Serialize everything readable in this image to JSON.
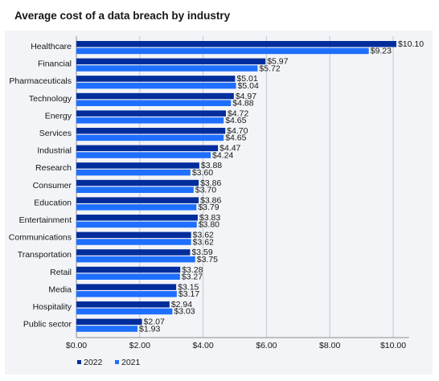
{
  "title": "Average cost of a data breach by industry",
  "colors": {
    "y2022": "#002d9c",
    "y2021": "#1f6fff",
    "grid": "#c1c7cd",
    "axis": "#8d8d8d",
    "panel": "#f2f4f8"
  },
  "chart_data": {
    "type": "bar",
    "orientation": "horizontal",
    "title": "Average cost of a data breach by industry",
    "categories": [
      "Healthcare",
      "Financial",
      "Pharmaceuticals",
      "Technology",
      "Energy",
      "Services",
      "Industrial",
      "Research",
      "Consumer",
      "Education",
      "Entertainment",
      "Communications",
      "Transportation",
      "Retail",
      "Media",
      "Hospitality",
      "Public sector"
    ],
    "series": [
      {
        "name": "2022",
        "color": "#002d9c",
        "values": [
          10.1,
          5.97,
          5.01,
          4.97,
          4.72,
          4.7,
          4.47,
          3.88,
          3.86,
          3.86,
          3.83,
          3.62,
          3.59,
          3.28,
          3.15,
          2.94,
          2.07
        ],
        "labels": [
          "$10.10",
          "$5.97",
          "$5.01",
          "$4.97",
          "$4.72",
          "$4.70",
          "$4.47",
          "$3.88",
          "$3.86",
          "$3.86",
          "$3.83",
          "$3.62",
          "$3.59",
          "$3.28",
          "$3.15",
          "$2.94",
          "$2.07"
        ]
      },
      {
        "name": "2021",
        "color": "#1f6fff",
        "values": [
          9.23,
          5.72,
          5.04,
          4.88,
          4.65,
          4.65,
          4.24,
          3.6,
          3.7,
          3.79,
          3.8,
          3.62,
          3.75,
          3.27,
          3.17,
          3.03,
          1.93
        ],
        "labels": [
          "$9.23",
          "$5.72",
          "$5.04",
          "$4.88",
          "$4.65",
          "$4.65",
          "$4.24",
          "$3.60",
          "$3.70",
          "$3.79",
          "$3.80",
          "$3.62",
          "$3.75",
          "$3.27",
          "$3.17",
          "$3.03",
          "$1.93"
        ]
      }
    ],
    "xlim": [
      0,
      10.5
    ],
    "xticks": [
      0,
      2,
      4,
      6,
      8,
      10
    ],
    "xtick_labels": [
      "$0.00",
      "$2.00",
      "$4.00",
      "$6.00",
      "$8.00",
      "$10.00"
    ],
    "grid": true,
    "legend_position": "bottom-left"
  }
}
